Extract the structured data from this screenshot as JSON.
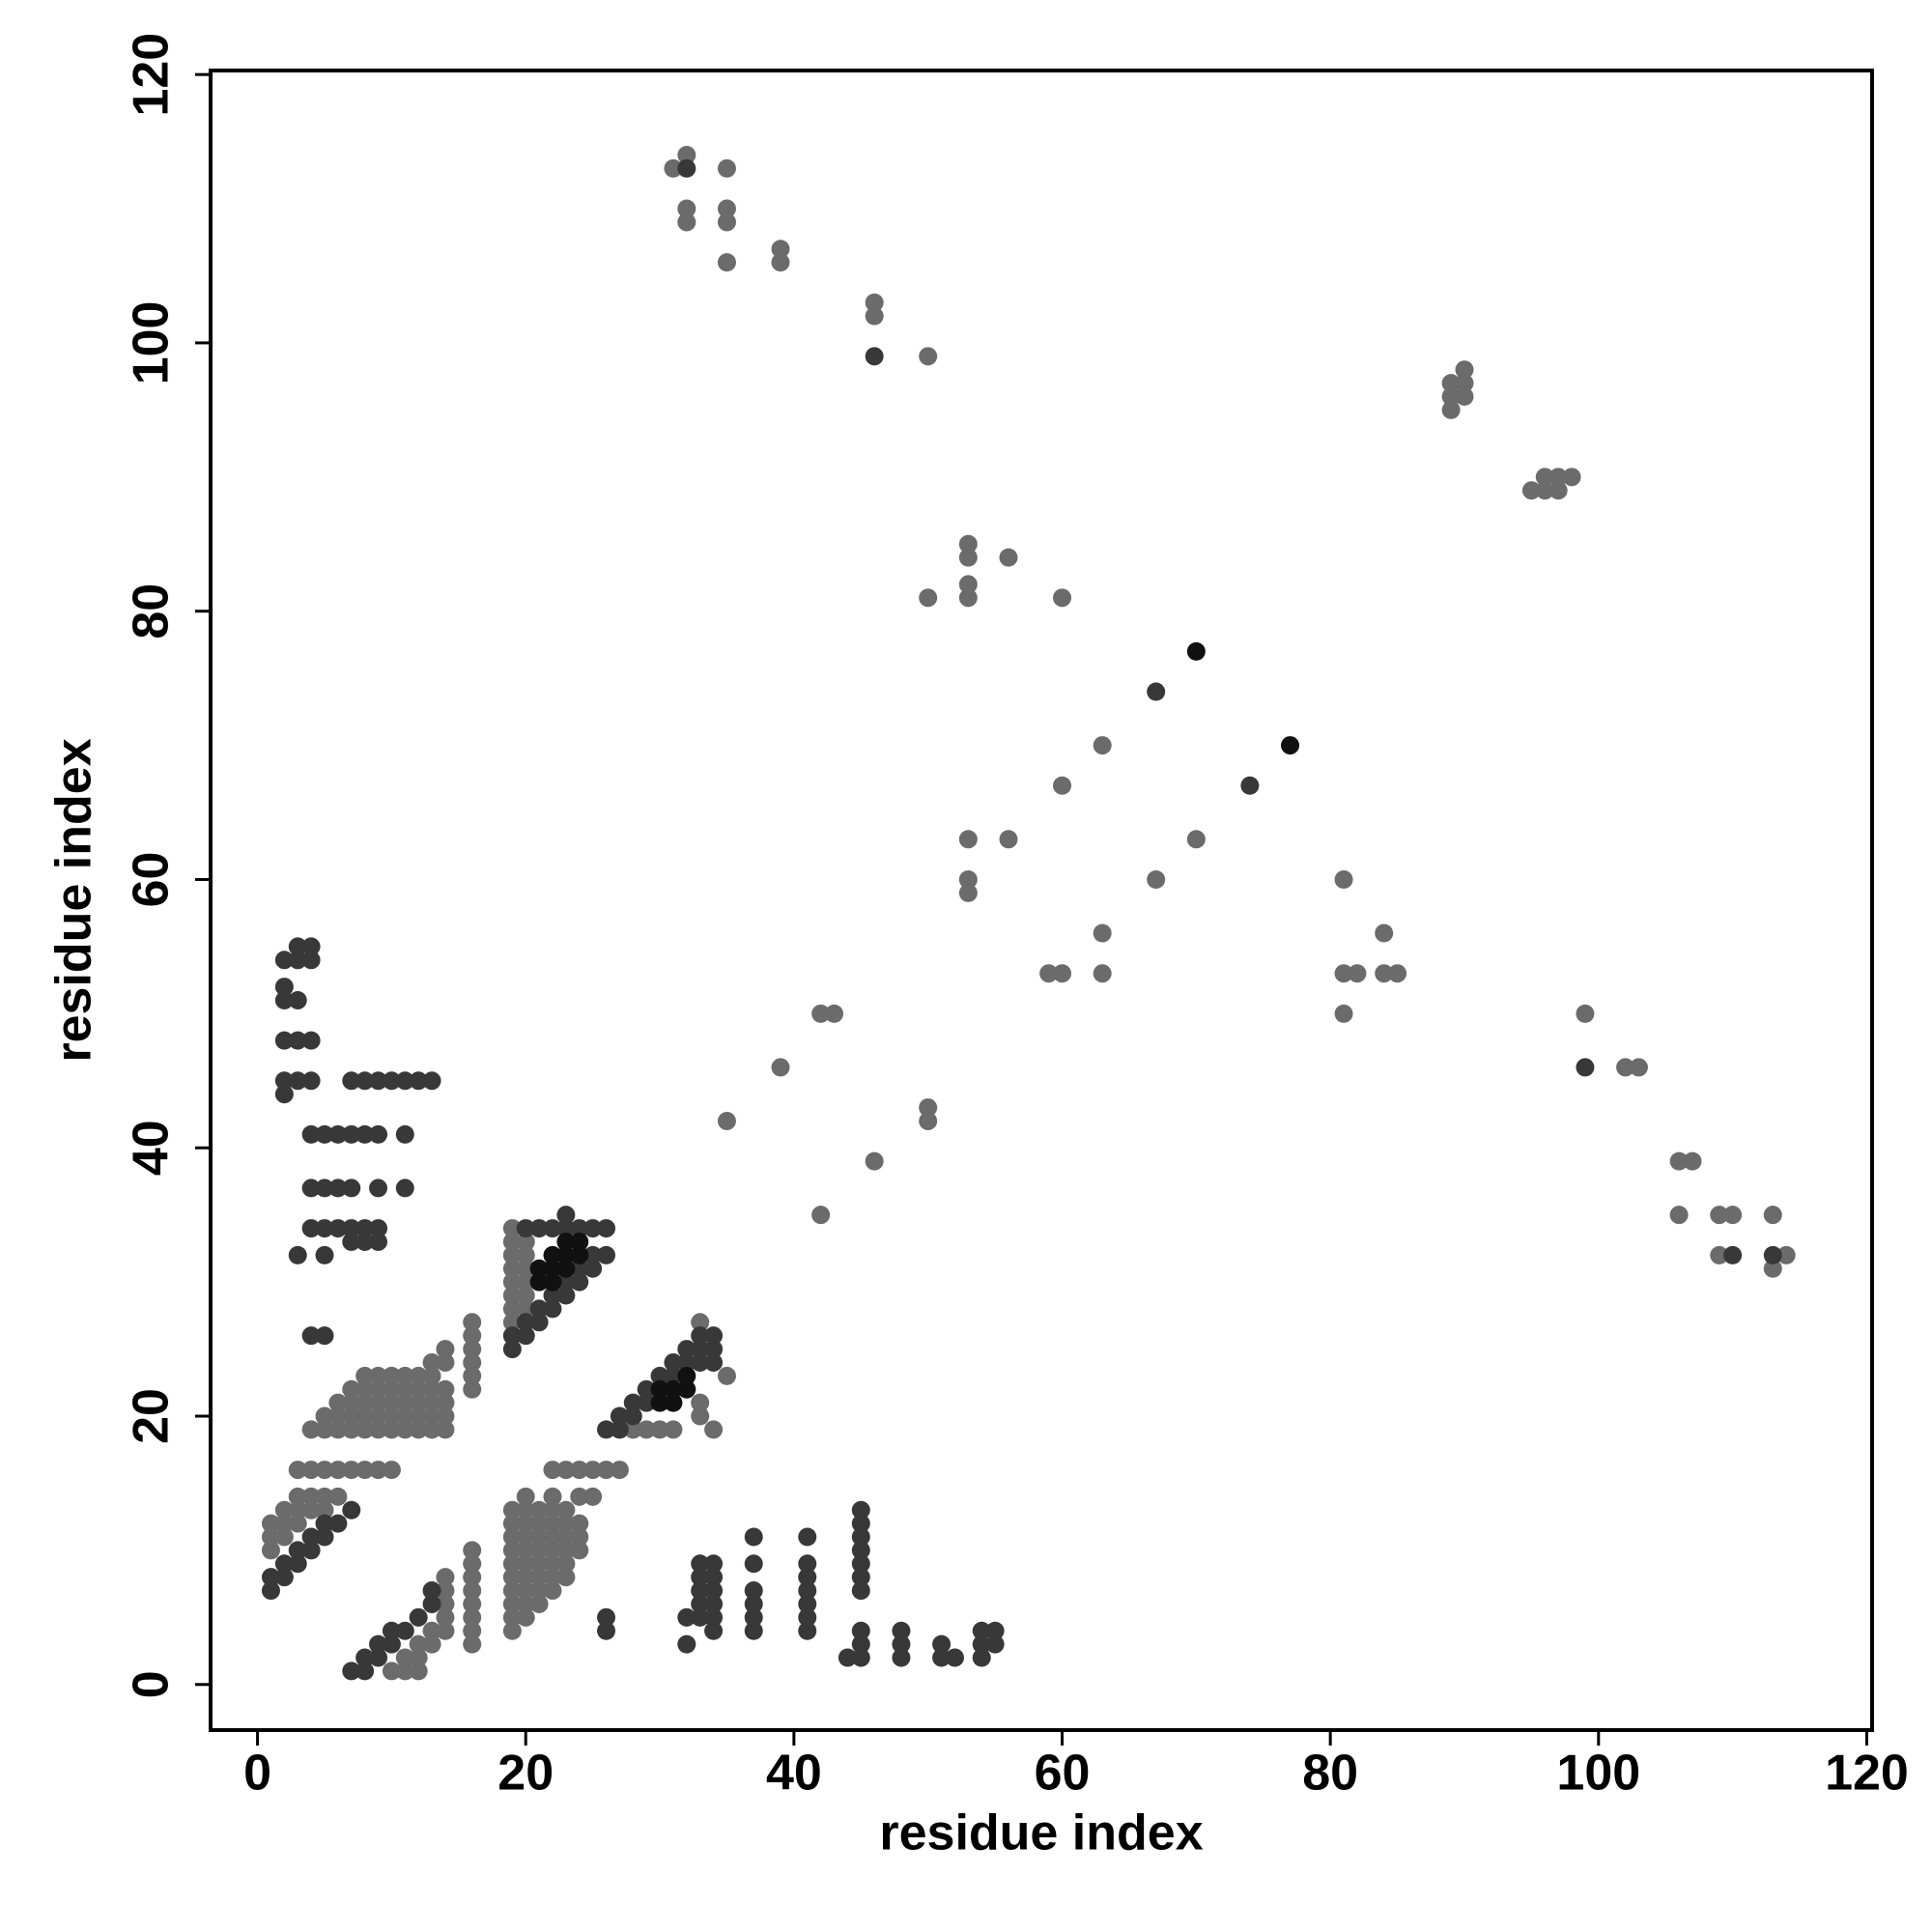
{
  "chart_data": {
    "type": "scatter",
    "x_label": "residue index",
    "y_label": "residue index",
    "xlim": [
      -3.5,
      120.4
    ],
    "ylim": [
      -3.4,
      120.3
    ],
    "xticks": [
      0,
      20,
      40,
      60,
      80,
      100,
      120
    ],
    "yticks": [
      0,
      20,
      40,
      60,
      80,
      100,
      120
    ],
    "grid": false,
    "series": [
      {
        "color": "#6b6b6b",
        "x": [
          31,
          32,
          32,
          32,
          35,
          35,
          35,
          35,
          39,
          39,
          46,
          46,
          50,
          89,
          89,
          89,
          90,
          90,
          90,
          95,
          96,
          96,
          97,
          97,
          98,
          53,
          53,
          53,
          53,
          56,
          50,
          60,
          63,
          60,
          53,
          56,
          70,
          53,
          53,
          67,
          81,
          63,
          84,
          59,
          60,
          63,
          81,
          82,
          84,
          85,
          81,
          99,
          42,
          43,
          39,
          102,
          103,
          35,
          50,
          50,
          46,
          106,
          107,
          42,
          106,
          109,
          110,
          113,
          109,
          114,
          113,
          1,
          1,
          1,
          2,
          2,
          2,
          3,
          3,
          3,
          4,
          4,
          5,
          5,
          6,
          3,
          4,
          5,
          6,
          7,
          8,
          9,
          10,
          4,
          5,
          6,
          7,
          8,
          9,
          10,
          11,
          12,
          13,
          14,
          5,
          6,
          7,
          8,
          9,
          10,
          11,
          12,
          13,
          14,
          6,
          7,
          8,
          9,
          10,
          11,
          12,
          13,
          14,
          7,
          8,
          9,
          10,
          11,
          12,
          13,
          14,
          8,
          9,
          10,
          11,
          12,
          13,
          13,
          14,
          14,
          16,
          16,
          16,
          16,
          16,
          16,
          19,
          19,
          19,
          19,
          19,
          19,
          19,
          19,
          20,
          20,
          20,
          20,
          20,
          20,
          28,
          29,
          30,
          31,
          33,
          33,
          34,
          35,
          33,
          19,
          19,
          19,
          19,
          19,
          19,
          19,
          19,
          19,
          19,
          20,
          20,
          20,
          20,
          20,
          20,
          20,
          20,
          20,
          20,
          21,
          21,
          21,
          21,
          21,
          21,
          21,
          21,
          22,
          22,
          22,
          22,
          22,
          22,
          22,
          22,
          23,
          23,
          23,
          23,
          23,
          23,
          24,
          24,
          24,
          24,
          25,
          22,
          23,
          24,
          25,
          26,
          27,
          10,
          11,
          12,
          11,
          12,
          12,
          13,
          13,
          14,
          14,
          14,
          14,
          14,
          16,
          16,
          16,
          16,
          16,
          16,
          16,
          16
        ],
        "values": [
          113,
          114,
          110,
          109,
          113,
          110,
          109,
          106,
          107,
          106,
          103,
          102,
          99,
          95,
          96,
          97,
          96,
          97,
          98,
          89,
          89,
          90,
          89,
          90,
          90,
          85,
          84,
          82,
          81,
          84,
          81,
          81,
          70,
          67,
          63,
          63,
          63,
          60,
          59,
          60,
          60,
          56,
          56,
          53,
          53,
          53,
          53,
          53,
          53,
          53,
          50,
          50,
          50,
          50,
          46,
          46,
          46,
          42,
          43,
          42,
          39,
          39,
          39,
          35,
          35,
          35,
          35,
          35,
          32,
          32,
          31,
          10,
          11,
          12,
          11,
          12,
          13,
          12,
          13,
          14,
          13,
          14,
          13,
          14,
          14,
          16,
          16,
          16,
          16,
          16,
          16,
          16,
          16,
          19,
          19,
          19,
          19,
          19,
          19,
          19,
          19,
          19,
          19,
          19,
          20,
          20,
          20,
          20,
          20,
          20,
          20,
          20,
          20,
          20,
          21,
          21,
          21,
          21,
          21,
          21,
          21,
          21,
          21,
          22,
          22,
          22,
          22,
          22,
          22,
          22,
          22,
          23,
          23,
          23,
          23,
          23,
          23,
          24,
          24,
          25,
          22,
          23,
          24,
          25,
          26,
          27,
          27,
          28,
          29,
          30,
          31,
          32,
          33,
          34,
          28,
          29,
          30,
          31,
          32,
          33,
          19,
          19,
          19,
          19,
          20,
          21,
          19,
          23,
          27,
          4,
          5,
          6,
          7,
          8,
          9,
          10,
          11,
          12,
          13,
          5,
          6,
          7,
          8,
          9,
          10,
          11,
          12,
          13,
          14,
          6,
          7,
          8,
          9,
          10,
          11,
          12,
          13,
          7,
          8,
          9,
          10,
          11,
          12,
          13,
          14,
          8,
          9,
          10,
          11,
          12,
          13,
          10,
          11,
          12,
          14,
          14,
          16,
          16,
          16,
          16,
          16,
          16,
          1,
          1,
          1,
          2,
          2,
          3,
          3,
          4,
          4,
          5,
          6,
          7,
          8,
          3,
          4,
          5,
          6,
          7,
          8,
          9,
          10
        ]
      },
      {
        "color": "#383838",
        "x": [
          32,
          46,
          67,
          74,
          99,
          110,
          113,
          26,
          26,
          32,
          32,
          33,
          33,
          33,
          33,
          33,
          34,
          34,
          34,
          34,
          34,
          34,
          37,
          37,
          37,
          37,
          37,
          37,
          41,
          41,
          41,
          41,
          41,
          41,
          41,
          45,
          45,
          45,
          45,
          45,
          45,
          45,
          45,
          45,
          45,
          44,
          48,
          48,
          48,
          51,
          51,
          52,
          54,
          54,
          54,
          55,
          55,
          3,
          4,
          2,
          3,
          4,
          2,
          2,
          3,
          2,
          3,
          4,
          2,
          2,
          3,
          4,
          7,
          8,
          9,
          10,
          11,
          12,
          13,
          4,
          5,
          6,
          7,
          8,
          9,
          11,
          4,
          5,
          6,
          7,
          9,
          11,
          4,
          5,
          6,
          7,
          8,
          9,
          7,
          8,
          9,
          3,
          5,
          4,
          5,
          1,
          1,
          2,
          2,
          3,
          3,
          4,
          4,
          5,
          5,
          6,
          7,
          19,
          19,
          20,
          20,
          21,
          21,
          22,
          22,
          23,
          23,
          24,
          24,
          25,
          25,
          26,
          20,
          21,
          22,
          23,
          24,
          25,
          26,
          23,
          26,
          27,
          27,
          28,
          28,
          29,
          29,
          30,
          30,
          31,
          31,
          32,
          32,
          33,
          33,
          34,
          34,
          34,
          33,
          7,
          8,
          8,
          9,
          9,
          10,
          10,
          11,
          12,
          13,
          13
        ],
        "values": [
          113,
          99,
          74,
          67,
          46,
          32,
          32,
          5,
          4,
          5,
          3,
          9,
          8,
          7,
          6,
          5,
          9,
          8,
          7,
          6,
          5,
          4,
          11,
          9,
          7,
          6,
          5,
          4,
          11,
          9,
          8,
          7,
          6,
          5,
          4,
          13,
          12,
          11,
          10,
          9,
          8,
          7,
          4,
          3,
          2,
          2,
          4,
          3,
          2,
          3,
          2,
          2,
          4,
          3,
          2,
          4,
          3,
          55,
          55,
          54,
          54,
          54,
          52,
          51,
          51,
          48,
          48,
          48,
          45,
          44,
          45,
          45,
          45,
          45,
          45,
          45,
          45,
          45,
          45,
          41,
          41,
          41,
          41,
          41,
          41,
          41,
          37,
          37,
          37,
          37,
          37,
          37,
          34,
          34,
          34,
          34,
          34,
          34,
          33,
          33,
          33,
          32,
          32,
          26,
          26,
          7,
          8,
          8,
          9,
          9,
          10,
          10,
          11,
          11,
          12,
          12,
          13,
          25,
          26,
          26,
          27,
          27,
          28,
          28,
          29,
          29,
          30,
          30,
          31,
          31,
          32,
          32,
          34,
          34,
          34,
          34,
          34,
          34,
          34,
          35,
          19,
          19,
          20,
          20,
          21,
          21,
          22,
          22,
          23,
          23,
          24,
          24,
          25,
          25,
          26,
          26,
          25,
          24,
          24,
          1,
          1,
          2,
          2,
          3,
          3,
          4,
          4,
          5,
          6,
          7
        ]
      },
      {
        "color": "#111111",
        "x": [
          70,
          77,
          21,
          21,
          22,
          22,
          23,
          23,
          24,
          22,
          23,
          24,
          30,
          31,
          31,
          32,
          32,
          30
        ],
        "values": [
          77,
          70,
          30,
          31,
          31,
          32,
          32,
          33,
          33,
          30,
          31,
          32,
          21,
          21,
          22,
          22,
          23,
          22
        ]
      }
    ]
  }
}
